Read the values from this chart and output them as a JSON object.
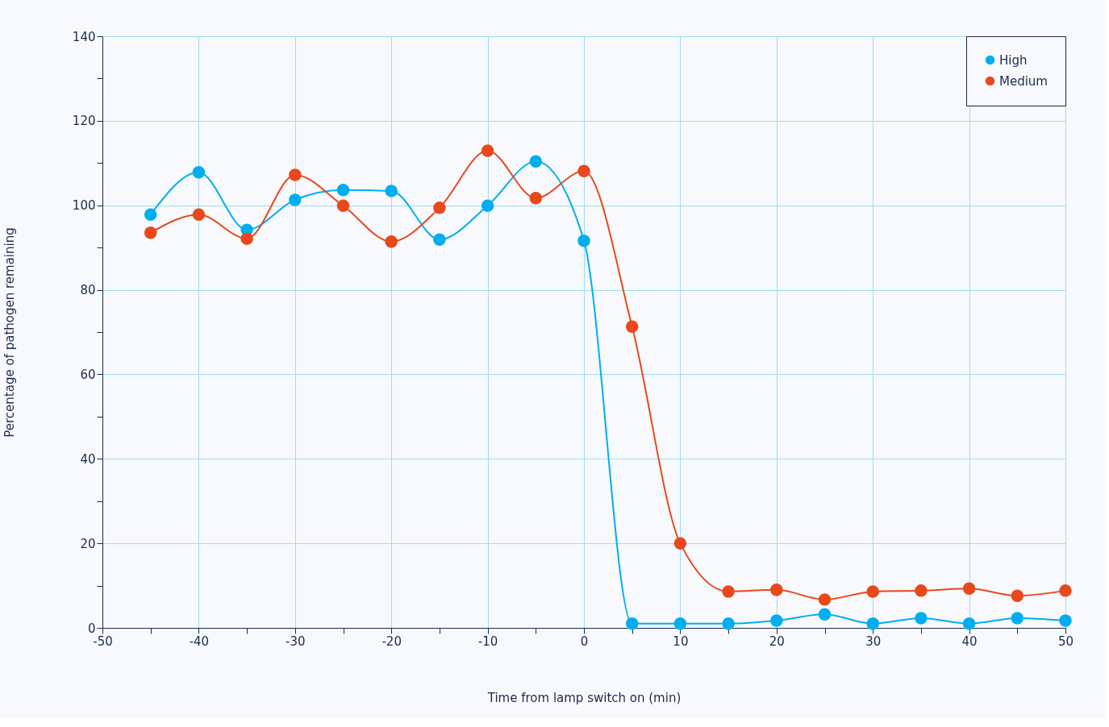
{
  "chart_data": {
    "type": "line",
    "xlabel": "Time from lamp switch on (min)",
    "ylabel": "Percentage of pathogen remaining",
    "x": [
      -45,
      -40,
      -35,
      -30,
      -25,
      -20,
      -15,
      -10,
      -5,
      0,
      5,
      10,
      15,
      20,
      25,
      30,
      35,
      40,
      45,
      50
    ],
    "series": [
      {
        "name": "High",
        "color": "#00aeef",
        "values": [
          97.8,
          107.8,
          94.2,
          101.3,
          103.6,
          103.4,
          91.9,
          99.9,
          110.4,
          91.6,
          1.0,
          1.0,
          1.0,
          1.7,
          3.2,
          1.0,
          2.3,
          1.0,
          2.3,
          1.7
        ]
      },
      {
        "name": "Medium",
        "color": "#e8481c",
        "values": [
          93.5,
          97.8,
          92.1,
          107.2,
          99.9,
          91.4,
          99.4,
          112.9,
          101.7,
          108.1,
          71.3,
          20.0,
          8.6,
          9.0,
          6.7,
          8.6,
          8.8,
          9.3,
          7.6,
          8.8
        ]
      }
    ],
    "xlim": [
      -50,
      50
    ],
    "xticks": [
      -50,
      {
        "value": -45,
        "label": null
      },
      -40,
      {
        "value": -35,
        "label": null
      },
      -30,
      {
        "value": -25,
        "label": null
      },
      -20,
      {
        "value": -15,
        "label": null
      },
      -10,
      {
        "value": -5,
        "label": null
      },
      0,
      {
        "value": 5,
        "label": null
      },
      10,
      {
        "value": 15,
        "label": null
      },
      20,
      {
        "value": 25,
        "label": null
      },
      30,
      {
        "value": 35,
        "label": null
      },
      40,
      {
        "value": 45,
        "label": null
      },
      50
    ],
    "ylim": [
      0,
      140
    ],
    "yticks": [
      0,
      {
        "value": 10,
        "label": null
      },
      20,
      {
        "value": 30,
        "label": null
      },
      40,
      {
        "value": 50,
        "label": null
      },
      60,
      {
        "value": 70,
        "label": null
      },
      80,
      {
        "value": 90,
        "label": null
      },
      100,
      {
        "value": 110,
        "label": null
      },
      120,
      {
        "value": 130,
        "label": null
      },
      140
    ],
    "grid": true,
    "legend": "top right",
    "marker": "circle",
    "line_style": "solid"
  }
}
